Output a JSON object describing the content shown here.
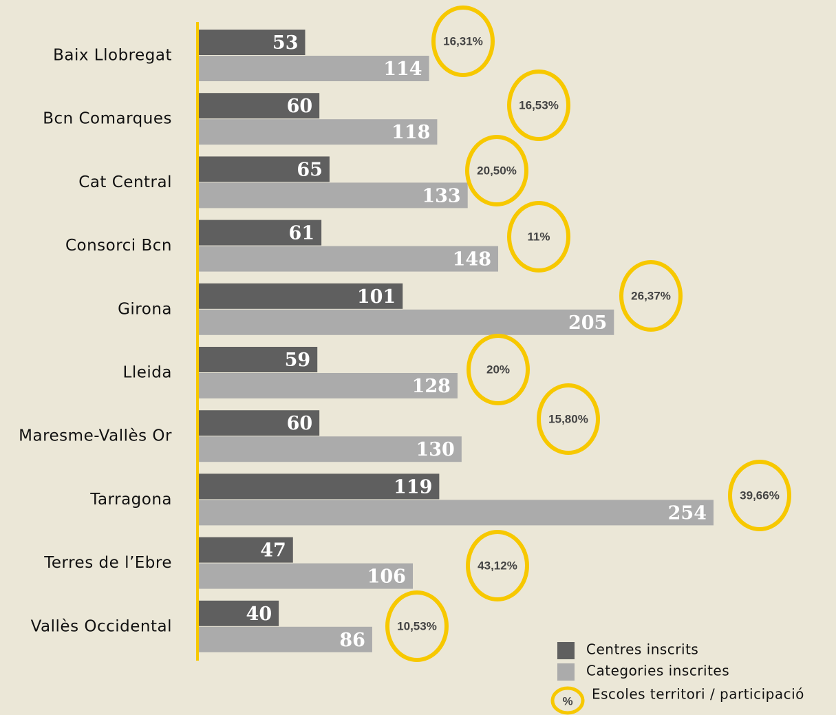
{
  "chart_data": {
    "type": "bar",
    "orientation": "horizontal",
    "categories": [
      "Baix Llobregat",
      "Bcn Comarques",
      "Cat Central",
      "Consorci Bcn",
      "Girona",
      "Lleida",
      "Maresme-Vallès Or",
      "Tarragona",
      "Terres de l’Ebre",
      "Vallès Occidental"
    ],
    "series": [
      {
        "name": "Centres inscrits",
        "color": "#5f5f5f",
        "values": [
          53,
          60,
          65,
          61,
          101,
          59,
          60,
          119,
          47,
          40
        ]
      },
      {
        "name": "Categories inscrites",
        "color": "#ababab",
        "values": [
          114,
          118,
          133,
          148,
          205,
          128,
          130,
          254,
          106,
          86
        ]
      }
    ],
    "percentages": {
      "name": "Escoles territori / participació",
      "color": "#f7c800",
      "legend_symbol": "%",
      "values": [
        16.31,
        16.53,
        20.5,
        11,
        26.37,
        20,
        15.8,
        39.66,
        43.12,
        10.53
      ],
      "value_labels": [
        "16,31%",
        "16,53%",
        "20,50%",
        "11%",
        "26,37%",
        "20%",
        "15,80%",
        "39,66%",
        "43,12%",
        "10,53%"
      ]
    },
    "axis_color": "#f7c800"
  }
}
